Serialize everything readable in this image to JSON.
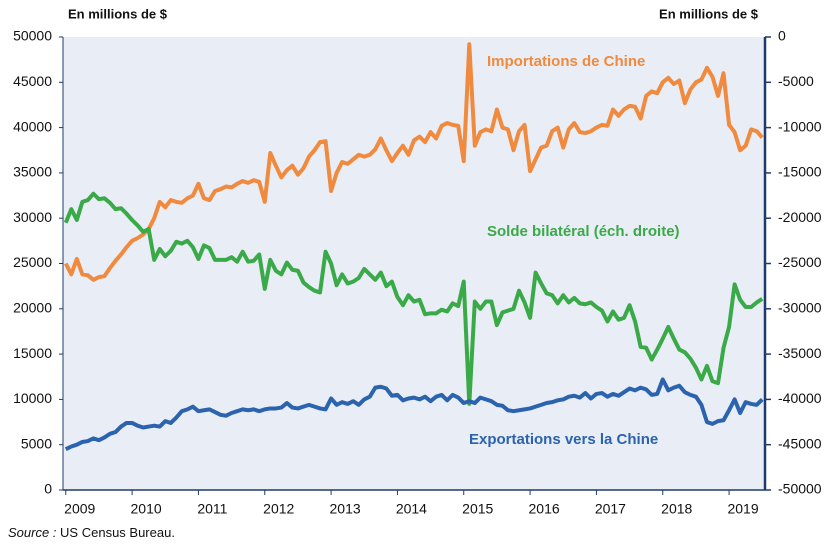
{
  "chart_data": {
    "type": "line",
    "y_label": "En millions de $",
    "y2_label": "En millions de $",
    "source_label": "Source :",
    "source_text": "US Census Bureau.",
    "annotations": [
      {
        "text": "Importations de Chine",
        "color": "#f08a3e"
      },
      {
        "text": "Solde bilatéral (éch. droite)",
        "color": "#3aaa48"
      },
      {
        "text": "Exportations vers la Chine",
        "color": "#2b63ae"
      }
    ],
    "categories": [
      "2009",
      null,
      null,
      null,
      null,
      null,
      null,
      null,
      null,
      null,
      null,
      null,
      "2010",
      null,
      null,
      null,
      null,
      null,
      null,
      null,
      null,
      null,
      null,
      null,
      "2011",
      null,
      null,
      null,
      null,
      null,
      null,
      null,
      null,
      null,
      null,
      null,
      "2012",
      null,
      null,
      null,
      null,
      null,
      null,
      null,
      null,
      null,
      null,
      null,
      "2013",
      null,
      null,
      null,
      null,
      null,
      null,
      null,
      null,
      null,
      null,
      null,
      "2014",
      null,
      null,
      null,
      null,
      null,
      null,
      null,
      null,
      null,
      null,
      null,
      "2015",
      null,
      null,
      null,
      null,
      null,
      null,
      null,
      null,
      null,
      null,
      null,
      "2016",
      null,
      null,
      null,
      null,
      null,
      null,
      null,
      null,
      null,
      null,
      null,
      "2017",
      null,
      null,
      null,
      null,
      null,
      null,
      null,
      null,
      null,
      null,
      null,
      "2018",
      null,
      null,
      null,
      null,
      null,
      null,
      null,
      null,
      null,
      null,
      null,
      "2019",
      null,
      null,
      null,
      null,
      null,
      null
    ],
    "ylim": [
      0,
      50000
    ],
    "yticks": [
      0,
      5000,
      10000,
      15000,
      20000,
      25000,
      30000,
      35000,
      40000,
      45000,
      50000
    ],
    "y2lim": [
      -50000,
      0
    ],
    "y2ticks": [
      -50000,
      -45000,
      -40000,
      -35000,
      -30000,
      -25000,
      -20000,
      -15000,
      -10000,
      -5000,
      0
    ],
    "series": [
      {
        "name": "Importations de Chine",
        "color": "#f08a3e",
        "values": [
          25000,
          23800,
          25500,
          23800,
          23700,
          23200,
          23500,
          23600,
          24500,
          25300,
          26000,
          26800,
          27500,
          27800,
          28200,
          28800,
          30000,
          31800,
          31200,
          32000,
          31800,
          31700,
          32200,
          32500,
          33800,
          32200,
          32000,
          33000,
          33200,
          33500,
          33400,
          33800,
          34100,
          33900,
          34200,
          34000,
          31800,
          37200,
          35800,
          34500,
          35300,
          35800,
          34800,
          35500,
          36800,
          37500,
          38400,
          38500,
          33000,
          35000,
          36200,
          36000,
          36500,
          37000,
          36800,
          37000,
          37600,
          38800,
          37500,
          36300,
          37200,
          38000,
          37000,
          38600,
          39000,
          38400,
          39500,
          38800,
          40200,
          40500,
          40300,
          40200,
          36300,
          49200,
          38000,
          39500,
          39800,
          39600,
          42000,
          40000,
          39800,
          37500,
          39600,
          40300,
          35200,
          36500,
          37800,
          38000,
          39600,
          40000,
          37800,
          39800,
          40500,
          39500,
          39400,
          39600,
          40000,
          40300,
          40200,
          42000,
          41300,
          42000,
          42400,
          42300,
          41000,
          43500,
          44000,
          43800,
          45000,
          45500,
          44800,
          45200,
          42700,
          44200,
          45000,
          45300,
          46600,
          45600,
          43500,
          46000,
          40300,
          39500,
          37500,
          38000,
          39800,
          39600,
          38900
        ]
      },
      {
        "name": "Solde bilatéral (éch. droite)",
        "color": "#3aaa48",
        "axis": "y2",
        "values": [
          -20500,
          -19000,
          -20200,
          -18200,
          -18000,
          -17300,
          -17900,
          -17800,
          -18300,
          -19000,
          -18900,
          -19500,
          -20200,
          -20800,
          -21500,
          -21200,
          -24600,
          -23400,
          -24200,
          -23600,
          -22600,
          -22800,
          -22500,
          -23200,
          -24500,
          -23000,
          -23300,
          -24600,
          -24600,
          -24600,
          -24300,
          -24800,
          -23700,
          -24800,
          -24700,
          -24000,
          -27800,
          -24600,
          -25800,
          -26200,
          -24900,
          -25700,
          -25800,
          -27100,
          -27600,
          -28000,
          -28200,
          -23700,
          -25000,
          -27400,
          -26200,
          -27200,
          -27000,
          -26600,
          -25600,
          -26200,
          -26800,
          -26000,
          -27500,
          -27000,
          -28700,
          -29600,
          -28500,
          -29200,
          -29000,
          -30600,
          -30500,
          -30500,
          -30100,
          -30300,
          -29400,
          -29700,
          -27000,
          -40500,
          -29200,
          -30000,
          -29200,
          -29200,
          -31800,
          -30400,
          -30200,
          -30000,
          -28000,
          -29300,
          -31000,
          -26000,
          -27200,
          -28300,
          -28500,
          -29400,
          -28500,
          -29300,
          -28800,
          -29400,
          -29500,
          -29300,
          -29800,
          -30200,
          -31400,
          -30300,
          -31200,
          -31000,
          -29600,
          -31400,
          -34200,
          -34300,
          -35600,
          -34500,
          -33300,
          -32000,
          -33300,
          -34500,
          -34800,
          -35500,
          -36500,
          -37800,
          -36300,
          -38000,
          -38200,
          -34300,
          -32000,
          -27300,
          -29000,
          -29800,
          -29800,
          -29300,
          -28900
        ]
      },
      {
        "name": "Exportations vers la Chine",
        "color": "#2b63ae",
        "values": [
          4500,
          4800,
          5000,
          5300,
          5400,
          5700,
          5500,
          5800,
          6200,
          6400,
          7000,
          7400,
          7400,
          7100,
          6900,
          7000,
          7100,
          7000,
          7600,
          7400,
          8000,
          8700,
          8900,
          9200,
          8700,
          8800,
          8900,
          8600,
          8300,
          8200,
          8500,
          8700,
          8900,
          8800,
          8900,
          8700,
          8900,
          9000,
          9000,
          9100,
          9600,
          9100,
          9000,
          9200,
          9400,
          9200,
          9000,
          8900,
          10100,
          9400,
          9700,
          9500,
          9800,
          9400,
          10000,
          10300,
          11300,
          11400,
          11200,
          10400,
          10500,
          9900,
          10100,
          10200,
          10000,
          10300,
          9800,
          10300,
          10500,
          9900,
          10500,
          10200,
          9600,
          9800,
          9600,
          10200,
          10000,
          9800,
          9400,
          9300,
          8800,
          8700,
          8800,
          8900,
          9000,
          9200,
          9400,
          9600,
          9700,
          9900,
          10000,
          10300,
          10400,
          10200,
          10700,
          10100,
          10600,
          10700,
          10300,
          10600,
          10400,
          10800,
          11200,
          11000,
          11300,
          11100,
          10500,
          10600,
          12200,
          11000,
          11300,
          11500,
          10800,
          10500,
          10300,
          9400,
          7500,
          7300,
          7600,
          7700,
          8800,
          10000,
          8500,
          9700,
          9500,
          9400,
          10000
        ]
      }
    ]
  }
}
